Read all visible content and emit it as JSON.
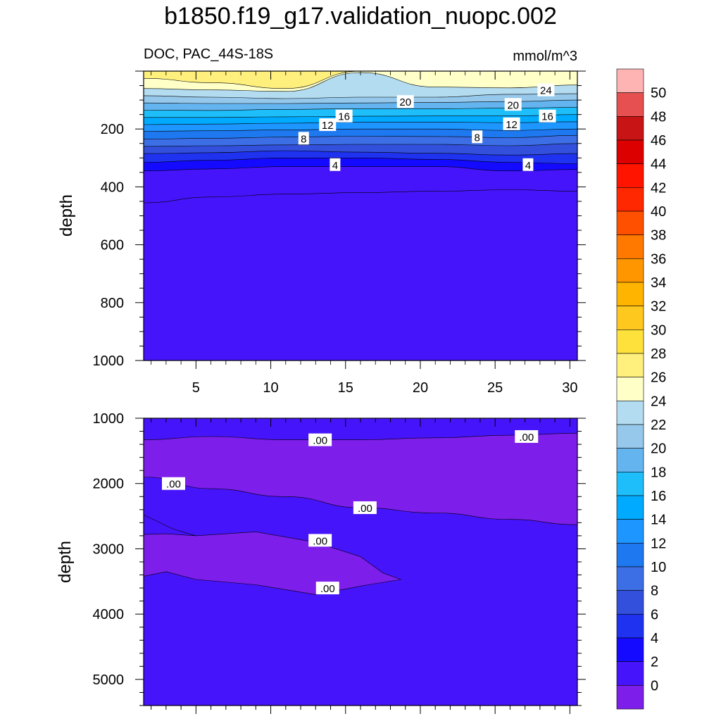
{
  "figure": {
    "title": "b1850.f19_g17.validation_nuopc.002"
  },
  "chart_data": [
    {
      "type": "contour",
      "panel": "upper",
      "left_label": "DOC, PAC_44S-18S",
      "right_label": "mmol/m^3",
      "ylabel": "depth",
      "xlabel": "",
      "xlim": [
        1.5,
        30.5
      ],
      "ylim": [
        1000,
        0
      ],
      "x_ticks": [
        5,
        10,
        15,
        20,
        25,
        30
      ],
      "y_ticks": [
        200,
        400,
        600,
        800,
        1000
      ],
      "grid": false,
      "levels_drawn": [
        {
          "level": 26,
          "depth": [
            25,
            40,
            60,
            0,
            0,
            0,
            0
          ]
        },
        {
          "level": 24,
          "depth": [
            60,
            65,
            70,
            5,
            55,
            58,
            48
          ]
        },
        {
          "level": 22,
          "depth": [
            85,
            90,
            95,
            90,
            90,
            80,
            78
          ]
        },
        {
          "level": 20,
          "depth": [
            110,
            112,
            112,
            110,
            108,
            105,
            100
          ]
        },
        {
          "level": 18,
          "depth": [
            135,
            136,
            132,
            130,
            130,
            128,
            125
          ]
        },
        {
          "level": 16,
          "depth": [
            160,
            160,
            158,
            156,
            155,
            155,
            150
          ]
        },
        {
          "level": 14,
          "depth": [
            185,
            183,
            180,
            176,
            176,
            178,
            175
          ]
        },
        {
          "level": 12,
          "depth": [
            208,
            206,
            203,
            200,
            200,
            205,
            200
          ]
        },
        {
          "level": 10,
          "depth": [
            235,
            232,
            228,
            225,
            226,
            230,
            222
          ]
        },
        {
          "level": 8,
          "depth": [
            260,
            258,
            255,
            253,
            253,
            258,
            250
          ]
        },
        {
          "level": 6,
          "depth": [
            285,
            282,
            275,
            280,
            284,
            290,
            285
          ]
        },
        {
          "level": 4,
          "depth": [
            315,
            308,
            300,
            300,
            305,
            315,
            320
          ]
        },
        {
          "level": 2,
          "depth": [
            345,
            338,
            330,
            330,
            330,
            345,
            340
          ]
        },
        {
          "level": 0,
          "depth": [
            455,
            435,
            425,
            420,
            415,
            410,
            415
          ]
        }
      ],
      "level_x": [
        1.5,
        6,
        11,
        16,
        21,
        26,
        30.5
      ],
      "contour_labels": [
        {
          "text": "24",
          "x": 28.4,
          "y": 65
        },
        {
          "text": "20",
          "x": 19.0,
          "y": 105
        },
        {
          "text": "20",
          "x": 26.2,
          "y": 115
        },
        {
          "text": "16",
          "x": 14.9,
          "y": 155
        },
        {
          "text": "16",
          "x": 28.5,
          "y": 155
        },
        {
          "text": "12",
          "x": 13.8,
          "y": 185
        },
        {
          "text": "12",
          "x": 26.1,
          "y": 182
        },
        {
          "text": "8",
          "x": 12.2,
          "y": 232
        },
        {
          "text": "8",
          "x": 23.8,
          "y": 227
        },
        {
          "text": "4",
          "x": 14.3,
          "y": 323
        },
        {
          "text": "4",
          "x": 27.2,
          "y": 323
        }
      ]
    },
    {
      "type": "contour",
      "panel": "lower",
      "ylabel": "depth",
      "xlabel": "",
      "xlim": [
        1.5,
        30.5
      ],
      "ylim": [
        5400,
        1000
      ],
      "y_ticks": [
        1000,
        2000,
        3000,
        4000,
        5000
      ],
      "grid": false,
      "regions": [
        {
          "name": "upper-purple-band",
          "top": [
            1330,
            1280,
            1330,
            1330,
            1300,
            1260,
            1230
          ],
          "bottom": [
            1900,
            2080,
            2200,
            2370,
            2450,
            2550,
            2630
          ],
          "x": [
            1.5,
            6,
            11,
            16,
            21,
            26,
            30.5
          ]
        },
        {
          "name": "lower-purple-lens",
          "outline_x": [
            1.5,
            3,
            5,
            9,
            13,
            16,
            17.5,
            18.7,
            16.5,
            13,
            9,
            5,
            3,
            1.5
          ],
          "outline_y": [
            2780,
            2770,
            2800,
            2740,
            2900,
            3120,
            3370,
            3470,
            3550,
            3700,
            3550,
            3470,
            3350,
            3420
          ]
        }
      ],
      "contour_labels": [
        {
          "text": ".00",
          "x": 13.3,
          "y": 1330
        },
        {
          "text": ".00",
          "x": 27.1,
          "y": 1280
        },
        {
          "text": ".00",
          "x": 3.5,
          "y": 2000
        },
        {
          "text": ".00",
          "x": 16.3,
          "y": 2370
        },
        {
          "text": ".00",
          "x": 13.3,
          "y": 2870
        },
        {
          "text": ".00",
          "x": 13.8,
          "y": 3600
        }
      ]
    }
  ],
  "colorbar": {
    "labels": [
      "50",
      "48",
      "46",
      "44",
      "42",
      "40",
      "38",
      "36",
      "34",
      "32",
      "30",
      "28",
      "26",
      "24",
      "22",
      "20",
      "18",
      "16",
      "14",
      "12",
      "10",
      "8",
      "6",
      "4",
      "2",
      "0"
    ],
    "colors": [
      "#FFB4B4",
      "#E65050",
      "#C81414",
      "#DC0000",
      "#FF1400",
      "#FF2800",
      "#FF5000",
      "#FF7800",
      "#FF9600",
      "#FFB400",
      "#FFC81E",
      "#FFE13C",
      "#FFF07D",
      "#FFFFC8",
      "#B4DCF0",
      "#96C8EB",
      "#64B4F0",
      "#1EBEFA",
      "#00AAFF",
      "#1E96FF",
      "#1E78F0",
      "#3C6EE6",
      "#3250DC",
      "#1E32F0",
      "#140AFF",
      "#4614FA",
      "#7D1EEB"
    ]
  },
  "fills": {
    "above_26": "#FFF07D",
    "24_26": "#FFFFC8",
    "22_24": "#B4DCF0",
    "20_22": "#96C8EB",
    "18_20": "#64B4F0",
    "16_18": "#1EBEFA",
    "14_16": "#00AAFF",
    "12_14": "#1E96FF",
    "10_12": "#1E78F0",
    "8_10": "#3C6EE6",
    "6_8": "#3250DC",
    "4_6": "#1E32F0",
    "2_4": "#140AFF",
    "0_2": "#4614FA",
    "below_0": "#7D1EEB"
  }
}
